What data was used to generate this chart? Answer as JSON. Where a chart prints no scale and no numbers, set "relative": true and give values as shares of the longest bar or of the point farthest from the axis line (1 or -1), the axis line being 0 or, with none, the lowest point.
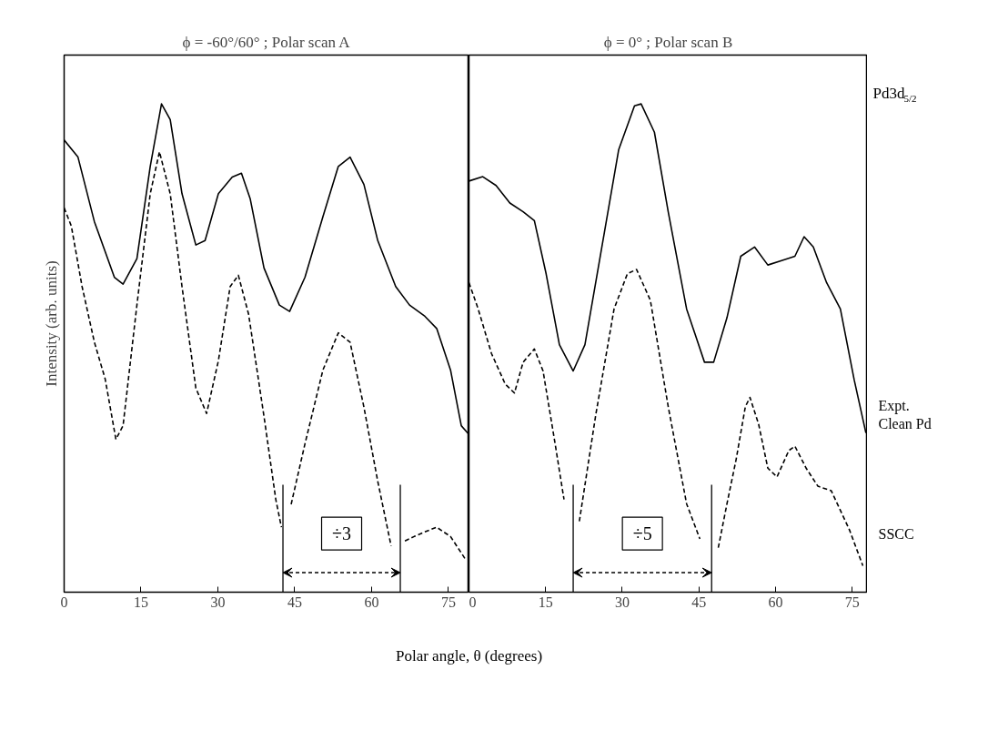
{
  "chart_data": [
    {
      "type": "line",
      "relative": true,
      "title": "ϕ = -60°/60° ; Polar scan A",
      "xlabel": "Polar angle, θ (degrees)",
      "ylabel": "Intensity (arb. units)",
      "xlim": [
        0,
        79
      ],
      "xticks": [
        0,
        15,
        30,
        45,
        60,
        75
      ],
      "marker": "none",
      "ref_lines": [
        {
          "axis": "x",
          "value": 42.7
        },
        {
          "axis": "x",
          "value": 65.6
        }
      ],
      "annotations": [
        "÷3"
      ],
      "series": [
        {
          "color": "#000000",
          "line_style": "solid",
          "x": [
            0,
            2.7,
            5.9,
            9.8,
            11.5,
            14.2,
            16.8,
            19,
            20.7,
            23,
            25.7,
            27.5,
            30.1,
            32.8,
            34.6,
            36.3,
            39,
            42,
            44,
            47,
            50.5,
            53.5,
            55.8,
            58.5,
            61.2,
            64.7,
            67.4,
            70.4,
            72.7,
            75.4,
            77.5,
            79
          ],
          "values": [
            0.926,
            0.891,
            0.759,
            0.645,
            0.631,
            0.683,
            0.872,
            1,
            0.968,
            0.816,
            0.711,
            0.72,
            0.816,
            0.85,
            0.858,
            0.806,
            0.664,
            0.588,
            0.575,
            0.645,
            0.769,
            0.872,
            0.891,
            0.835,
            0.72,
            0.626,
            0.588,
            0.565,
            0.54,
            0.455,
            0.341,
            0.323
          ]
        },
        {
          "color": "#000000",
          "line_style": "dashed",
          "x": [
            0,
            1.4,
            3.5,
            5.9,
            8,
            10.1,
            11.5,
            14.2,
            16.8,
            18.6,
            20.7,
            23,
            25.7,
            27.8,
            30.1,
            32.4,
            34,
            36,
            39,
            41.3,
            42.4,
            43.3,
            44.3,
            47,
            50.5,
            53.5,
            55.8,
            58.5,
            61.2,
            63.8,
            65.1,
            66.5,
            68.3,
            70.5,
            72.7,
            75.4,
            78.4
          ],
          "values": [
            0.787,
            0.75,
            0.626,
            0.512,
            0.437,
            0.313,
            0.341,
            0.588,
            0.816,
            0.902,
            0.816,
            0.626,
            0.418,
            0.366,
            0.474,
            0.626,
            0.649,
            0.569,
            0.36,
            0.19,
            0.133,
            null,
            0.18,
            0.304,
            0.455,
            0.531,
            0.512,
            0.379,
            0.227,
            0.095,
            null,
            0.105,
            0.114,
            0.124,
            0.133,
            0.114,
            0.066
          ]
        }
      ]
    },
    {
      "type": "line",
      "relative": true,
      "title": "ϕ = 0° ; Polar scan B",
      "xlim": [
        0,
        78
      ],
      "xticks": [
        0,
        15,
        30,
        45,
        60,
        75
      ],
      "marker": "none",
      "ref_lines": [
        {
          "axis": "x",
          "value": 20.4
        },
        {
          "axis": "x",
          "value": 47.5
        }
      ],
      "annotations": [
        "÷5",
        "Pd3d$_{5/2}$"
      ],
      "series": [
        {
          "name": "Expt.\nClean Pd",
          "color": "#000000",
          "line_style": "solid",
          "x": [
            0,
            2.7,
            5.3,
            8,
            10.6,
            12.8,
            15.1,
            17.7,
            20.4,
            22.7,
            25.7,
            29.3,
            32.4,
            33.7,
            36.3,
            39,
            42.6,
            46.1,
            47.9,
            50.5,
            53.2,
            55.9,
            58.5,
            61.2,
            63.8,
            65.6,
            67.4,
            70,
            72.7,
            75.4,
            77.7
          ],
          "values": [
            0.842,
            0.851,
            0.833,
            0.797,
            0.779,
            0.761,
            0.652,
            0.507,
            0.453,
            0.507,
            0.688,
            0.906,
            0.996,
            1,
            0.942,
            0.779,
            0.58,
            0.471,
            0.471,
            0.562,
            0.688,
            0.707,
            0.67,
            0.679,
            0.688,
            0.728,
            0.707,
            0.634,
            0.58,
            0.435,
            0.326
          ]
        },
        {
          "name": "SSCC",
          "color": "#000000",
          "line_style": "dashed",
          "x": [
            0,
            1.8,
            4.4,
            7.1,
            8.9,
            10.6,
            12.8,
            14.5,
            16.8,
            18.6,
            20.1,
            21.6,
            24.8,
            28.4,
            31,
            32.8,
            35.5,
            39,
            42.6,
            45.2,
            47,
            48.8,
            50.5,
            52.3,
            54.1,
            55,
            56.7,
            58.5,
            60.3,
            62.6,
            63.8,
            66,
            68.3,
            70.9,
            74.5,
            77.1
          ],
          "values": [
            0.634,
            0.58,
            0.489,
            0.426,
            0.408,
            0.471,
            0.498,
            0.453,
            0.308,
            0.19,
            null,
            0.145,
            0.362,
            0.58,
            0.652,
            0.661,
            0.598,
            0.38,
            0.181,
            0.109,
            null,
            0.091,
            0.181,
            0.272,
            0.38,
            0.399,
            0.344,
            0.254,
            0.236,
            0.29,
            0.299,
            0.254,
            0.217,
            0.208,
            0.127,
            0.054
          ]
        }
      ]
    }
  ]
}
